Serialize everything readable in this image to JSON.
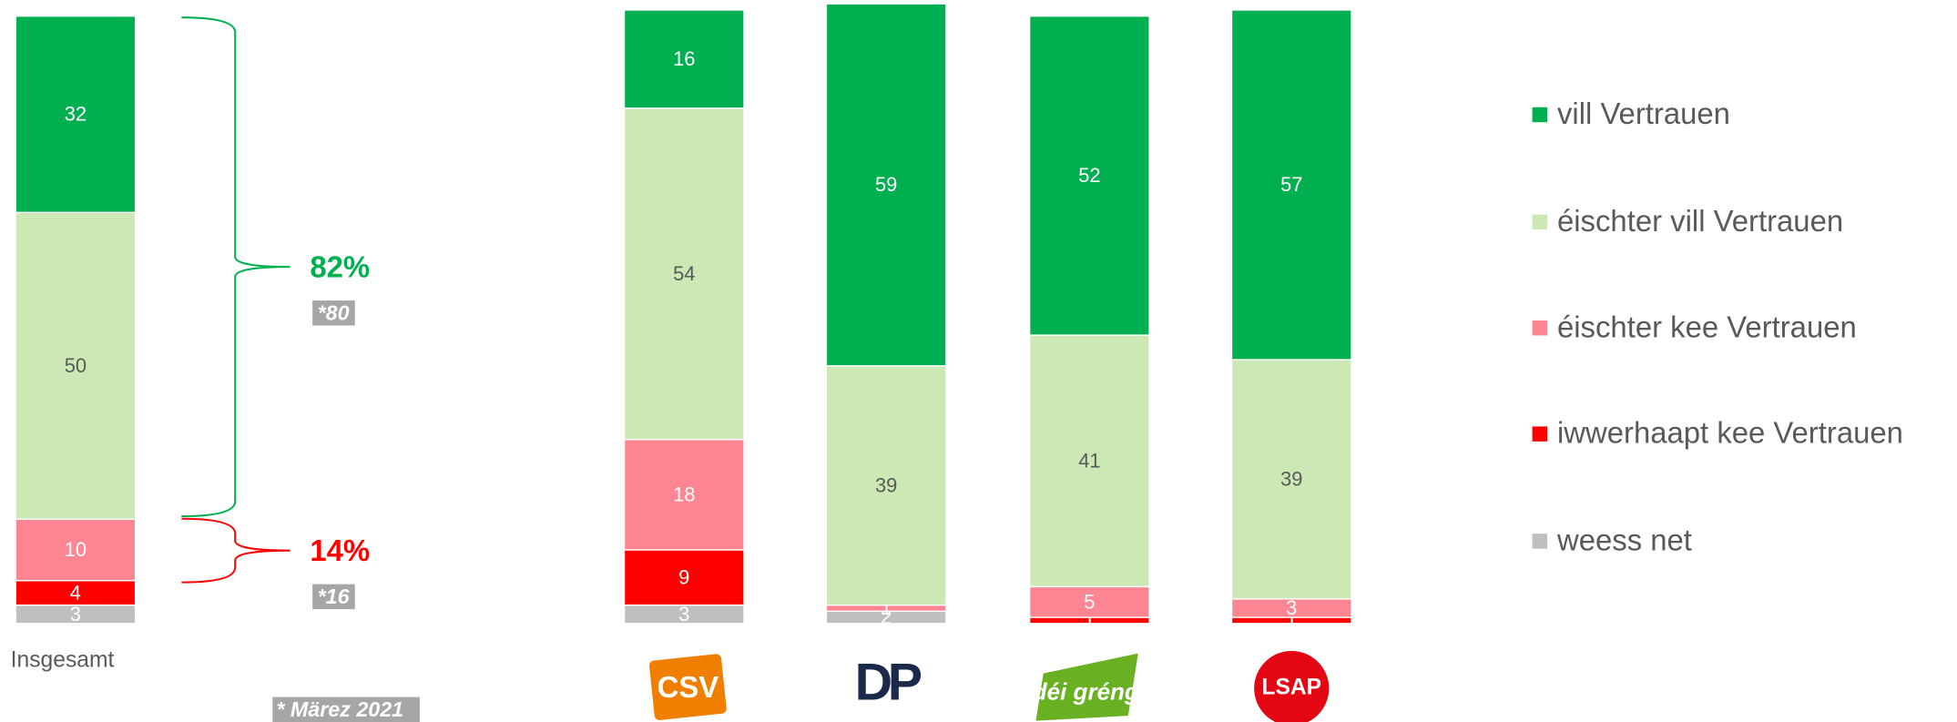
{
  "chart_data": {
    "type": "stacked-bar",
    "categories": [
      "Insgesamt",
      "CSV",
      "DP",
      "déi gréng",
      "LSAP"
    ],
    "series": [
      {
        "name": "weess net",
        "color": "#bfbfbf",
        "values": [
          3,
          3,
          2,
          0,
          0
        ]
      },
      {
        "name": "iwwerhaapt kee Vertrauen",
        "color": "#ff0000",
        "values": [
          4,
          9,
          0,
          1,
          1
        ]
      },
      {
        "name": "éischter kee Vertrauen",
        "color": "#ff8593",
        "values": [
          10,
          18,
          1,
          5,
          3
        ]
      },
      {
        "name": "éischter vill Vertrauen",
        "color": "#cce8b5",
        "values": [
          50,
          54,
          39,
          41,
          39
        ]
      },
      {
        "name": "vill Vertrauen",
        "color": "#00b050",
        "values": [
          32,
          16,
          59,
          52,
          57
        ]
      }
    ],
    "ylim": [
      0,
      100
    ],
    "annotations": [
      {
        "text": "82%",
        "previous": "*80",
        "color": "#00b050"
      },
      {
        "text": "14%",
        "previous": "*16",
        "color": "#ff0000"
      }
    ],
    "footnote": "* Märez 2021"
  }
}
